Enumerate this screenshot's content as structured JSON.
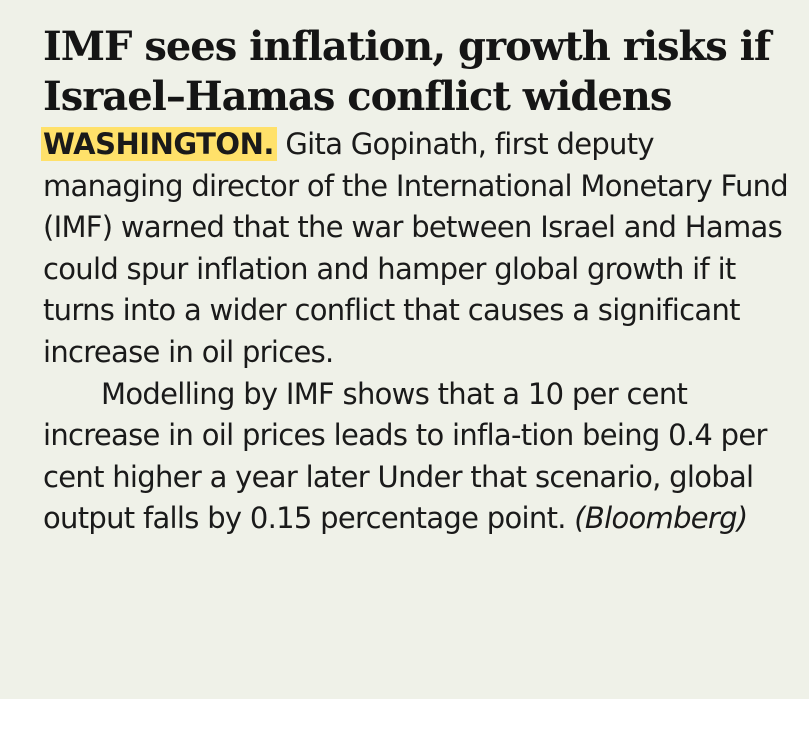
{
  "article": {
    "headline": "IMF sees inflation, growth risks if Israel–Hamas conflict widens",
    "dateline": "WASHINGTON.",
    "paragraph1": " Gita Gopinath, first deputy managing director of the International Monetary Fund (IMF) warned that the war between Israel and Hamas could spur inflation and hamper global growth if it turns into a wider conflict that causes a significant increase in oil prices.",
    "paragraph2": "Modelling by IMF shows that a 10 per cent increase in oil prices leads to infla-tion being 0.4 per cent higher a year later Under that scenario, global output falls by 0.15 percentage point. ",
    "credit": "(Bloomberg)"
  },
  "colors": {
    "background": "#eff1e8",
    "dateline_highlight": "#ffe16a",
    "text": "#1a1a1a"
  }
}
